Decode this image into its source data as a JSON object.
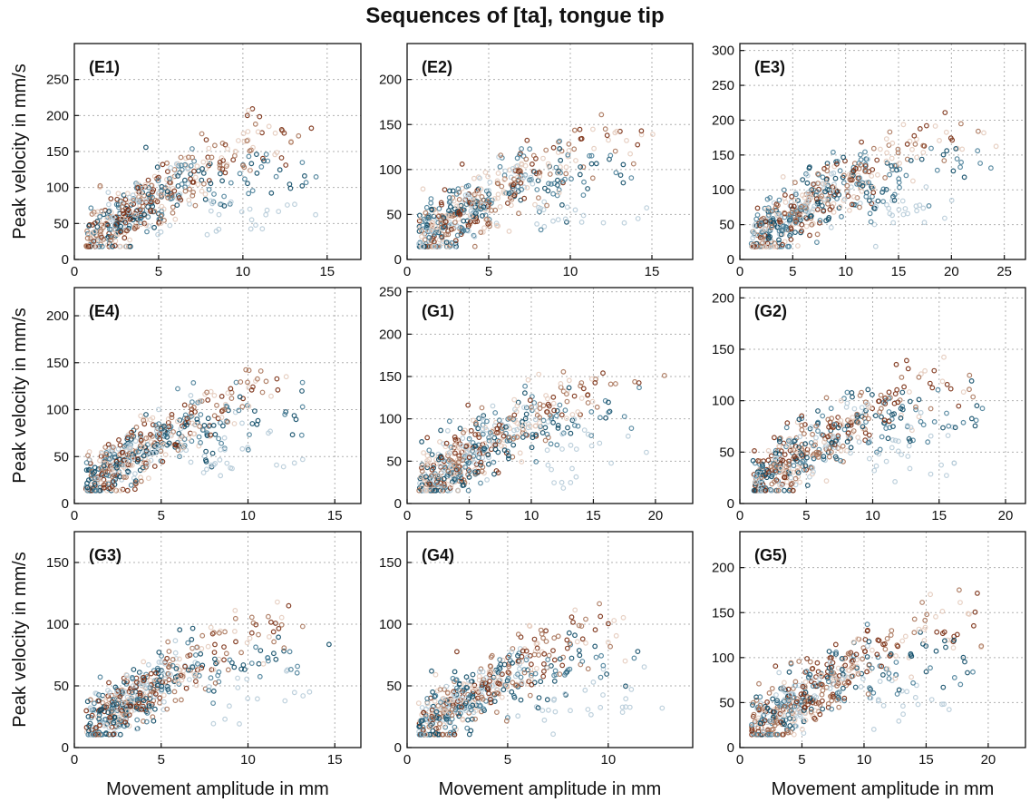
{
  "title": "Sequences of [ta], tongue tip",
  "xlabel": "Movement amplitude in mm",
  "ylabel": "Peak velocity in mm/s",
  "colors": {
    "dark_blue": "#0d4a66",
    "mid_blue": "#4a7f99",
    "light_blue": "#b6cbd8",
    "dark_brown": "#7a2e12",
    "mid_brown": "#a9745a",
    "light_brown": "#e4cbbd",
    "grid": "#b0b0b0"
  },
  "chart_data": [
    {
      "type": "scatter",
      "label": "(E1)",
      "xlim": [
        0,
        17
      ],
      "ylim": [
        0,
        300
      ],
      "xticks": [
        0,
        5,
        10,
        15
      ],
      "yticks": [
        0,
        50,
        100,
        150,
        200,
        250
      ],
      "grid": true
    },
    {
      "type": "scatter",
      "label": "(E2)",
      "xlim": [
        0,
        17.5
      ],
      "ylim": [
        0,
        240
      ],
      "xticks": [
        0,
        5,
        10,
        15
      ],
      "yticks": [
        0,
        50,
        100,
        150,
        200
      ],
      "grid": true
    },
    {
      "type": "scatter",
      "label": "(E3)",
      "xlim": [
        0,
        27
      ],
      "ylim": [
        0,
        310
      ],
      "xticks": [
        0,
        5,
        10,
        15,
        20,
        25
      ],
      "yticks": [
        0,
        50,
        100,
        150,
        200,
        250,
        300
      ],
      "grid": true
    },
    {
      "type": "scatter",
      "label": "(E4)",
      "xlim": [
        0,
        16.5
      ],
      "ylim": [
        0,
        230
      ],
      "xticks": [
        0,
        5,
        10,
        15
      ],
      "yticks": [
        0,
        50,
        100,
        150,
        200
      ],
      "grid": true
    },
    {
      "type": "scatter",
      "label": "(G1)",
      "xlim": [
        0,
        23
      ],
      "ylim": [
        0,
        255
      ],
      "xticks": [
        0,
        5,
        10,
        15,
        20
      ],
      "yticks": [
        0,
        50,
        100,
        150,
        200,
        250
      ],
      "grid": true
    },
    {
      "type": "scatter",
      "label": "(G2)",
      "xlim": [
        0,
        21.5
      ],
      "ylim": [
        0,
        210
      ],
      "xticks": [
        0,
        5,
        10,
        15,
        20
      ],
      "yticks": [
        0,
        50,
        100,
        150,
        200
      ],
      "grid": true
    },
    {
      "type": "scatter",
      "label": "(G3)",
      "xlim": [
        0,
        16.5
      ],
      "ylim": [
        0,
        175
      ],
      "xticks": [
        0,
        5,
        10,
        15
      ],
      "yticks": [
        0,
        50,
        100,
        150
      ],
      "grid": true
    },
    {
      "type": "scatter",
      "label": "(G4)",
      "xlim": [
        0,
        14.2
      ],
      "ylim": [
        0,
        175
      ],
      "xticks": [
        0,
        5,
        10
      ],
      "yticks": [
        0,
        50,
        100,
        150
      ],
      "grid": true
    },
    {
      "type": "scatter",
      "label": "(G5)",
      "xlim": [
        0,
        23
      ],
      "ylim": [
        0,
        240
      ],
      "xticks": [
        0,
        5,
        10,
        15,
        20
      ],
      "yticks": [
        0,
        50,
        100,
        150,
        200
      ],
      "grid": true
    }
  ]
}
